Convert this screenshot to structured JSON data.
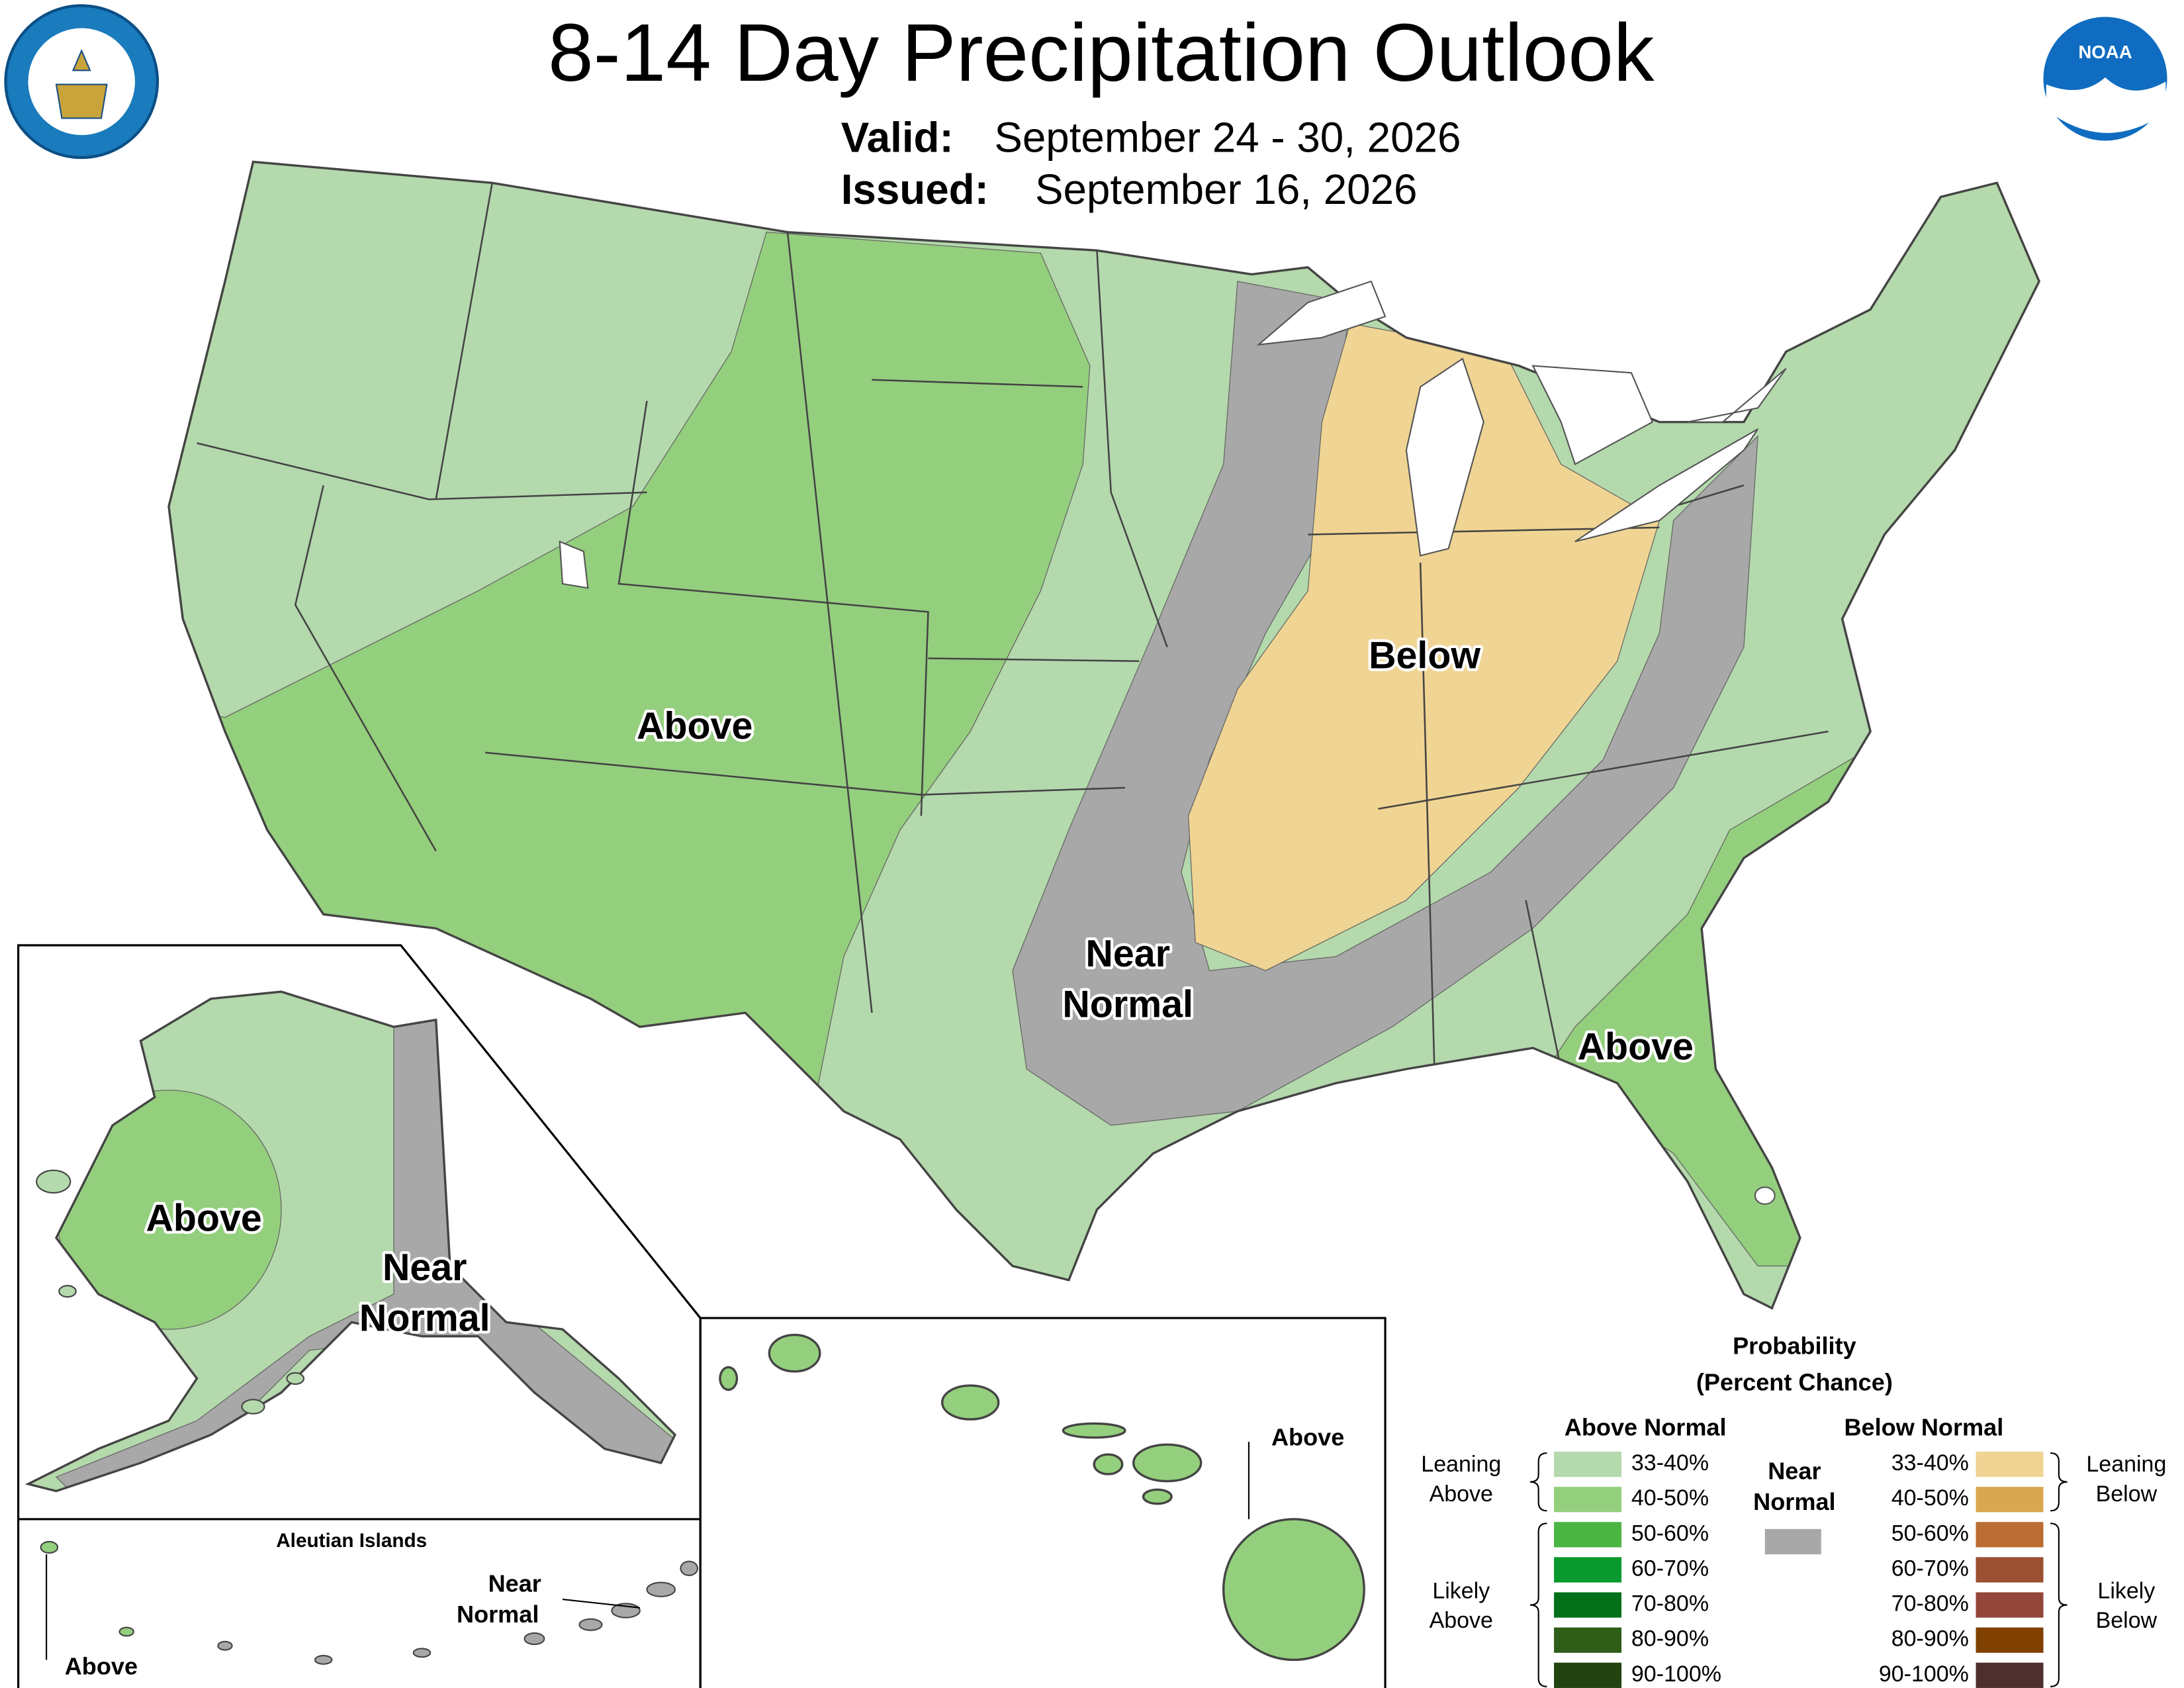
{
  "header": {
    "title": "8-14 Day Precipitation Outlook",
    "valid_label": "Valid:",
    "valid": "September 24 - 30, 2026",
    "issued_label": "Issued:",
    "issued": "September 16, 2026"
  },
  "logos": {
    "noaa": "NOAA"
  },
  "conus": {
    "above_west": "Above",
    "below": "Below",
    "near_normal": [
      "Near",
      "Normal"
    ],
    "above_southeast": "Above"
  },
  "alaska": {
    "above": "Above",
    "near_normal": [
      "Near",
      "Normal"
    ]
  },
  "aleutians": {
    "title": "Aleutian Islands",
    "near_normal": [
      "Near",
      "Normal"
    ],
    "above": "Above"
  },
  "hawaii": {
    "above": "Above"
  },
  "legend": {
    "title": "Probability",
    "subtitle": "(Percent Chance)",
    "above_header": "Above Normal",
    "below_header": "Below Normal",
    "near_label": [
      "Near",
      "Normal"
    ],
    "near_color": "#a8a8a8",
    "leaning_above": [
      "Leaning",
      "Above"
    ],
    "likely_above": [
      "Likely",
      "Above"
    ],
    "leaning_below": [
      "Leaning",
      "Below"
    ],
    "likely_below": [
      "Likely",
      "Below"
    ],
    "above": [
      {
        "label": "33-40%",
        "color": "#b4d9ac"
      },
      {
        "label": "40-50%",
        "color": "#94cf7d"
      },
      {
        "label": "50-60%",
        "color": "#4bb543"
      },
      {
        "label": "60-70%",
        "color": "#089a2d"
      },
      {
        "label": "70-80%",
        "color": "#04711a"
      },
      {
        "label": "80-90%",
        "color": "#2f5e18"
      },
      {
        "label": "90-100%",
        "color": "#234411"
      }
    ],
    "below": [
      {
        "label": "33-40%",
        "color": "#f0d493"
      },
      {
        "label": "40-50%",
        "color": "#d8a750"
      },
      {
        "label": "50-60%",
        "color": "#bb6d33"
      },
      {
        "label": "60-70%",
        "color": "#9b5031"
      },
      {
        "label": "70-80%",
        "color": "#934639"
      },
      {
        "label": "80-90%",
        "color": "#804000"
      },
      {
        "label": "90-100%",
        "color": "#4f2e2e"
      }
    ]
  }
}
